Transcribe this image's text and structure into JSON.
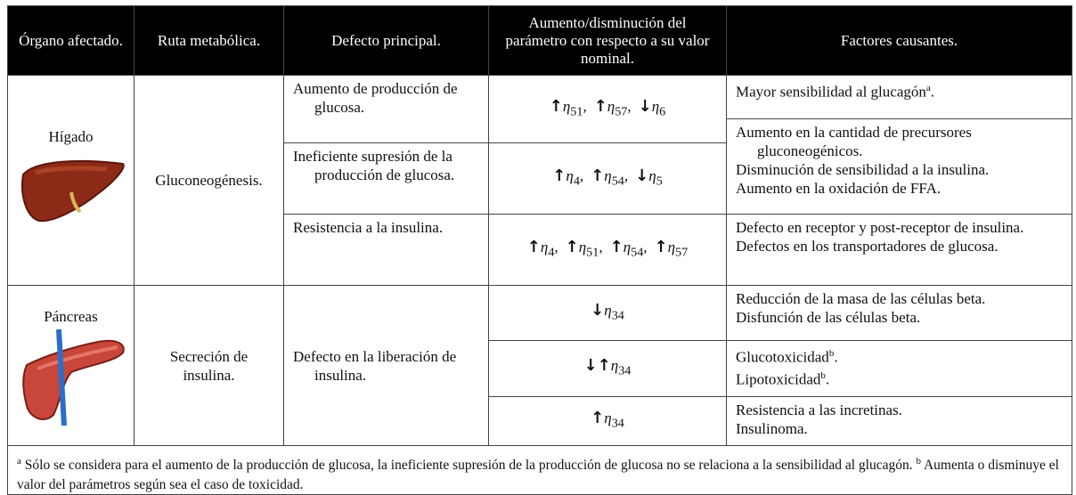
{
  "header": [
    "Órgano afectado.",
    "Ruta metabólica.",
    "Defecto principal.",
    "Aumento/disminución del parámetro con respecto a su valor nominal.",
    "Factores causantes."
  ],
  "organs": [
    {
      "name": "Hígado",
      "route": "Gluconeogénesis."
    },
    {
      "name": "Páncreas",
      "route": "Secreción de insulina."
    }
  ],
  "defects": [
    "Aumento de producción de glucosa.",
    "Ineficiente supresión de la producción de glucosa.",
    "Resistencia a la insulina.",
    "Defecto en la liberación de insulina."
  ],
  "symbol": "η",
  "parameters": [
    [
      {
        "arrow": "↑",
        "sub": "51",
        "sep": ","
      },
      {
        "arrow": "↑",
        "sub": "57",
        "sep": ","
      },
      {
        "arrow": "↓",
        "sub": "6"
      }
    ],
    [
      {
        "arrow": "↑",
        "sub": "4",
        "sep": ","
      },
      {
        "arrow": "↑",
        "sub": "54",
        "sep": ","
      },
      {
        "arrow": "↓",
        "sub": "5"
      }
    ],
    [
      {
        "arrow": "↑",
        "sub": "4",
        "sep": ","
      },
      {
        "arrow": "↑",
        "sub": "51",
        "sep": ","
      },
      {
        "arrow": "↑",
        "sub": "54",
        "sep": ","
      },
      {
        "arrow": "↑",
        "sub": "57"
      }
    ],
    [
      {
        "arrow": "↓",
        "sub": "34"
      }
    ],
    [
      {
        "arrow": "↓↑",
        "sub": "34"
      }
    ],
    [
      {
        "arrow": "↑",
        "sub": "34"
      }
    ]
  ],
  "factors": [
    [
      {
        "text": "Mayor sensibilidad al glucagón",
        "sup": "a",
        "after": "."
      }
    ],
    [
      "Aumento en la cantidad de precursores gluconeogénicos.",
      "Disminución de sensibilidad a la insulina.",
      "Aumento en la oxidación de FFA."
    ],
    [
      "Defecto en receptor y post-receptor de insulina.",
      "Defectos en los transportadores de glucosa."
    ],
    [
      "Reducción de la masa de las células beta.",
      "Disfunción de las células beta."
    ],
    [
      {
        "text": "Glucotoxicidad",
        "sup": "b",
        "after": "."
      },
      {
        "text": "Lipotoxicidad",
        "sup": "b",
        "after": "."
      }
    ],
    [
      "Resistencia a las incretinas.",
      "Insulinoma."
    ]
  ],
  "footnote": [
    {
      "sup": "a",
      "text": "Sólo se considera para el aumento de la producción de glucosa, la ineficiente supresión de la producción de glucosa no se relaciona a la sensibilidad al glucagón."
    },
    {
      "sup": "b",
      "text": "Aumenta o disminuye el valor del parámetros según sea el caso de toxicidad."
    }
  ]
}
